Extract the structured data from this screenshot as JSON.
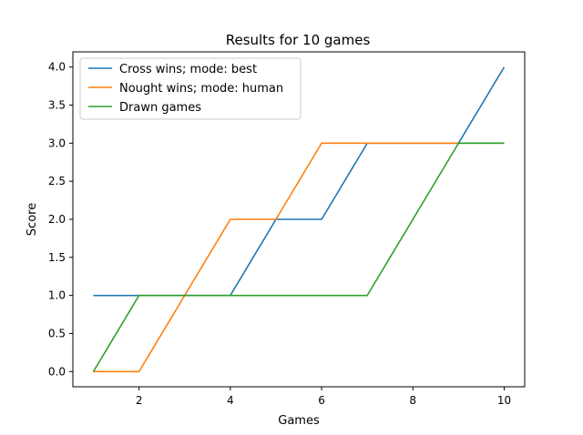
{
  "chart_data": {
    "type": "line",
    "title": "Results for 10 games",
    "xlabel": "Games",
    "ylabel": "Score",
    "xlim": [
      0.55,
      10.45
    ],
    "ylim": [
      -0.2,
      4.2
    ],
    "xticks": [
      2,
      4,
      6,
      8,
      10
    ],
    "xtick_labels": [
      "2",
      "4",
      "6",
      "8",
      "10"
    ],
    "yticks": [
      0,
      0.5,
      1,
      1.5,
      2,
      2.5,
      3,
      3.5,
      4
    ],
    "ytick_labels": [
      "0.0",
      "0.5",
      "1.0",
      "1.5",
      "2.0",
      "2.5",
      "3.0",
      "3.5",
      "4.0"
    ],
    "grid": false,
    "legend_position": "top-left",
    "x": [
      1,
      2,
      3,
      4,
      5,
      6,
      7,
      8,
      9,
      10
    ],
    "series": [
      {
        "name": "Cross wins; mode: best",
        "color": "#1f77b4",
        "values": [
          1,
          1,
          1,
          1,
          2,
          2,
          3,
          3,
          3,
          4
        ]
      },
      {
        "name": "Nought wins; mode: human",
        "color": "#ff7f0e",
        "values": [
          0,
          0,
          1,
          2,
          2,
          3,
          3,
          3,
          3,
          3
        ]
      },
      {
        "name": "Drawn games",
        "color": "#2ca02c",
        "values": [
          0,
          1,
          1,
          1,
          1,
          1,
          1,
          2,
          3,
          3
        ]
      }
    ]
  }
}
